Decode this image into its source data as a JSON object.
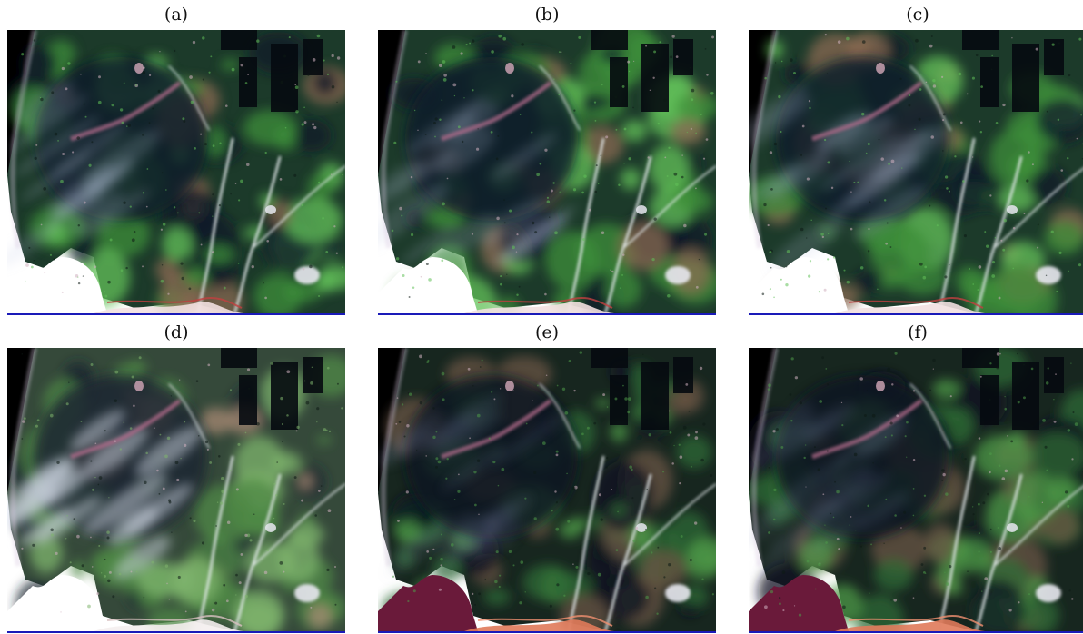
{
  "panels": [
    {
      "id": "a",
      "label": "(a)",
      "palette": "natural"
    },
    {
      "id": "b",
      "label": "(b)",
      "palette": "natural"
    },
    {
      "id": "c",
      "label": "(c)",
      "palette": "natural"
    },
    {
      "id": "d",
      "label": "(d)",
      "palette": "hazy"
    },
    {
      "id": "e",
      "label": "(e)",
      "palette": "dark"
    },
    {
      "id": "f",
      "label": "(f)",
      "palette": "dark"
    }
  ],
  "colors": {
    "rule": "#1a1ab8",
    "sea": "#ffffff",
    "dark_forest": "#0f1a2a",
    "vegetation": "#3f8f3a",
    "bright_vegetation": "#63c15a",
    "soil": "#8a6a52",
    "water_dark": "#060a10",
    "river": "#e8eef0",
    "sea_red": "#6a1a3a",
    "coast_orange": "#e07a5a"
  }
}
